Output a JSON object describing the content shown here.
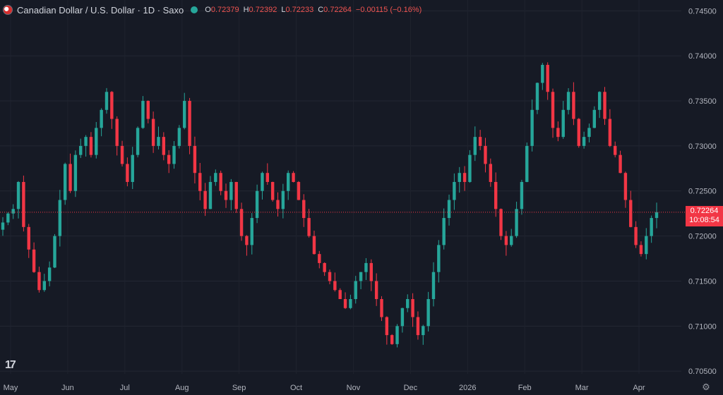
{
  "header": {
    "symbol": "Canadian Dollar / U.S. Dollar · 1D · Saxo",
    "open_label": "O",
    "open": "0.72379",
    "high_label": "H",
    "high": "0.72392",
    "low_label": "L",
    "low": "0.72233",
    "close_label": "C",
    "close": "0.72264",
    "change": "−0.00115 (−0.16%)"
  },
  "last_price": {
    "value": "0.72264",
    "countdown": "10:08:54"
  },
  "colors": {
    "up": "#26a69a",
    "down": "#f23645",
    "background": "#161a25"
  },
  "icons": {
    "logo": "tradingview-logo-icon",
    "settings": "gear-icon",
    "flag": "canada-flag-icon",
    "status": "market-status-dot-icon"
  },
  "chart_data": {
    "type": "candlestick",
    "title": "Canadian Dollar / U.S. Dollar · 1D · Saxo",
    "y_axis_ticks": [
      "0.74500",
      "0.74000",
      "0.73500",
      "0.73000",
      "0.72500",
      "0.72000",
      "0.71500",
      "0.71000",
      "0.70500"
    ],
    "ylim": [
      0.7047,
      0.7462
    ],
    "x_axis_ticks": [
      "May",
      "Jun",
      "Jul",
      "Aug",
      "Sep",
      "Oct",
      "Nov",
      "Dec",
      "2026",
      "Feb",
      "Mar",
      "Apr"
    ],
    "last_close": 0.72264,
    "grid": true,
    "path_description": "approximate daily closes",
    "closes": [
      0.7215,
      0.7225,
      0.723,
      0.726,
      0.721,
      0.7185,
      0.716,
      0.714,
      0.715,
      0.7165,
      0.72,
      0.724,
      0.728,
      0.725,
      0.729,
      0.73,
      0.731,
      0.729,
      0.732,
      0.734,
      0.736,
      0.733,
      0.73,
      0.728,
      0.726,
      0.729,
      0.732,
      0.735,
      0.733,
      0.73,
      0.731,
      0.729,
      0.728,
      0.73,
      0.732,
      0.735,
      0.73,
      0.727,
      0.725,
      0.723,
      0.726,
      0.727,
      0.725,
      0.724,
      0.726,
      0.723,
      0.72,
      0.719,
      0.722,
      0.725,
      0.727,
      0.726,
      0.724,
      0.723,
      0.725,
      0.727,
      0.726,
      0.724,
      0.722,
      0.72,
      0.718,
      0.717,
      0.716,
      0.715,
      0.714,
      0.713,
      0.712,
      0.713,
      0.715,
      0.716,
      0.717,
      0.715,
      0.713,
      0.711,
      0.709,
      0.708,
      0.71,
      0.712,
      0.713,
      0.711,
      0.709,
      0.71,
      0.713,
      0.716,
      0.719,
      0.722,
      0.724,
      0.726,
      0.727,
      0.726,
      0.729,
      0.731,
      0.73,
      0.728,
      0.726,
      0.723,
      0.72,
      0.719,
      0.72,
      0.723,
      0.726,
      0.73,
      0.734,
      0.737,
      0.739,
      0.736,
      0.732,
      0.731,
      0.734,
      0.736,
      0.733,
      0.73,
      0.731,
      0.732,
      0.734,
      0.736,
      0.733,
      0.73,
      0.729,
      0.727,
      0.724,
      0.721,
      0.719,
      0.718,
      0.72,
      0.722,
      0.72264
    ]
  }
}
